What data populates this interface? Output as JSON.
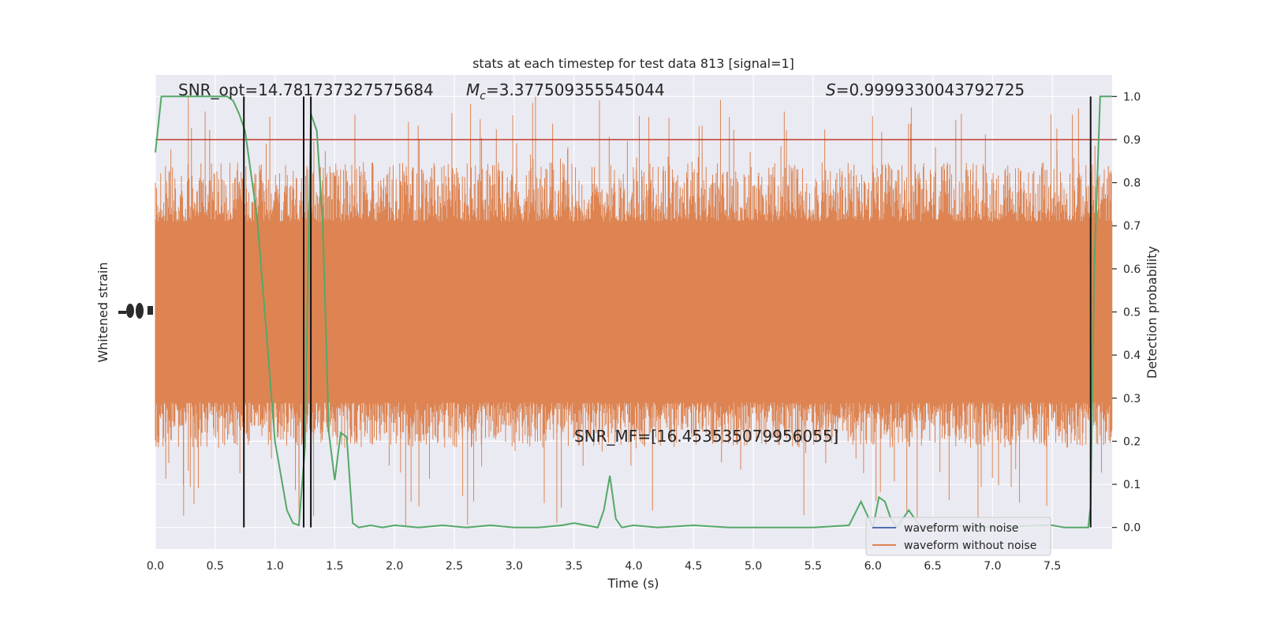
{
  "chart_data": {
    "type": "line",
    "title": "stats at each timestep for test data 813 [signal=1]",
    "xlabel": "Time (s)",
    "ylabel_left": "Whitened strain",
    "ylabel_right": "Detection probability",
    "xlim": [
      0.0,
      8.0
    ],
    "ylim_right": [
      -0.05,
      1.05
    ],
    "x_ticks": [
      "0.0",
      "0.5",
      "1.0",
      "1.5",
      "2.0",
      "2.5",
      "3.0",
      "3.5",
      "4.0",
      "4.5",
      "5.0",
      "5.5",
      "6.0",
      "6.5",
      "7.0",
      "7.5"
    ],
    "x_tick_values": [
      0.0,
      0.5,
      1.0,
      1.5,
      2.0,
      2.5,
      3.0,
      3.5,
      4.0,
      4.5,
      5.0,
      5.5,
      6.0,
      6.5,
      7.0,
      7.5
    ],
    "y_right_ticks": [
      "0.0",
      "0.1",
      "0.2",
      "0.3",
      "0.4",
      "0.5",
      "0.6",
      "0.7",
      "0.8",
      "0.9",
      "1.0"
    ],
    "y_right_tick_values": [
      0.0,
      0.1,
      0.2,
      0.3,
      0.4,
      0.5,
      0.6,
      0.7,
      0.8,
      0.9,
      1.0
    ],
    "grid": true,
    "legend_position": "lower-right",
    "annotations": {
      "snr_opt": "SNR_opt=14.781737327575684",
      "mc_symbol": "M",
      "mc_subscript": "c",
      "mc_value": "=3.377509355545044",
      "s_symbol": "S",
      "s_value": "=0.9999330043792725",
      "snr_mf": "SNR_MF=[16.453535079956055]"
    },
    "threshold": {
      "y": 0.9,
      "color": "#c0392b"
    },
    "vertical_lines_x": [
      0.74,
      1.24,
      1.3,
      7.82
    ],
    "strain_band": {
      "series": "waveform without noise",
      "color": "#dd8452",
      "core_range_prob": [
        0.29,
        0.71
      ],
      "typical_spike_range_prob": [
        0.19,
        0.84
      ],
      "max_spike_prob": 1.0,
      "min_spike_prob": 0.0
    },
    "series": [
      {
        "name": "waveform with noise",
        "color": "#4c72b0",
        "x": [],
        "y": []
      },
      {
        "name": "waveform without noise",
        "color": "#dd8452",
        "x": [],
        "y": []
      },
      {
        "color": "#55a868",
        "x": [
          0.0,
          0.05,
          0.1,
          0.2,
          0.3,
          0.4,
          0.5,
          0.6,
          0.65,
          0.7,
          0.75,
          0.8,
          0.85,
          0.9,
          1.0,
          1.05,
          1.1,
          1.15,
          1.2,
          1.25,
          1.3,
          1.35,
          1.4,
          1.45,
          1.5,
          1.55,
          1.6,
          1.65,
          1.7,
          1.8,
          1.9,
          2.0,
          2.2,
          2.4,
          2.6,
          2.8,
          3.0,
          3.2,
          3.4,
          3.5,
          3.6,
          3.7,
          3.75,
          3.8,
          3.85,
          3.9,
          4.0,
          4.2,
          4.5,
          4.8,
          5.0,
          5.5,
          5.8,
          5.9,
          6.0,
          6.05,
          6.1,
          6.15,
          6.2,
          6.3,
          6.4,
          6.6,
          7.0,
          7.4,
          7.5,
          7.6,
          7.7,
          7.8,
          7.82,
          7.85,
          7.9,
          7.95,
          8.0
        ],
        "y": [
          0.87,
          1.0,
          1.0,
          1.0,
          1.0,
          1.0,
          1.0,
          1.0,
          0.99,
          0.96,
          0.92,
          0.82,
          0.72,
          0.55,
          0.2,
          0.12,
          0.04,
          0.01,
          0.005,
          0.18,
          0.96,
          0.92,
          0.7,
          0.22,
          0.11,
          0.22,
          0.21,
          0.01,
          0.0,
          0.005,
          0.0,
          0.005,
          0.0,
          0.005,
          0.0,
          0.005,
          0.0,
          0.0,
          0.005,
          0.01,
          0.005,
          0.0,
          0.04,
          0.12,
          0.02,
          0.0,
          0.005,
          0.0,
          0.005,
          0.0,
          0.0,
          0.0,
          0.005,
          0.06,
          0.0,
          0.07,
          0.06,
          0.02,
          0.0,
          0.04,
          0.0,
          0.005,
          0.0,
          0.005,
          0.005,
          0.0,
          0.0,
          0.0,
          0.05,
          0.6,
          1.0,
          1.0,
          1.0
        ]
      }
    ]
  }
}
